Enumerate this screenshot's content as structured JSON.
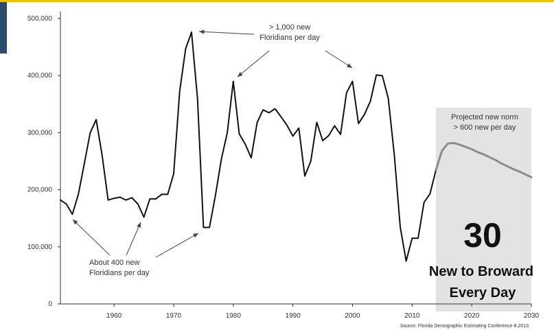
{
  "chart_data": {
    "type": "line",
    "title": "",
    "xlabel": "",
    "ylabel": "",
    "xlim": [
      1951,
      2030
    ],
    "ylim": [
      0,
      500000
    ],
    "xticks": [
      1960,
      1970,
      1980,
      1990,
      2000,
      2010,
      2020,
      2030
    ],
    "yticks": [
      0,
      100000,
      200000,
      300000,
      400000,
      500000
    ],
    "ytick_labels": [
      "0",
      "100,000",
      "200,000",
      "300,000",
      "400,000",
      "500,000"
    ],
    "grid": false,
    "series": [
      {
        "name": "",
        "color": "#111111",
        "x": [
          1951,
          1952,
          1953,
          1954,
          1955,
          1956,
          1957,
          1958,
          1959,
          1960,
          1961,
          1962,
          1963,
          1964,
          1965,
          1966,
          1967,
          1968,
          1969,
          1970,
          1971,
          1972,
          1973,
          1974,
          1975,
          1976,
          1977,
          1978,
          1979,
          1980,
          1981,
          1982,
          1983,
          1984,
          1985,
          1986,
          1987,
          1988,
          1989,
          1990,
          1991,
          1992,
          1993,
          1994,
          1995,
          1996,
          1997,
          1998,
          1999,
          2000,
          2001,
          2002,
          2003,
          2004,
          2005,
          2006,
          2007,
          2008,
          2009,
          2010,
          2011,
          2012,
          2013,
          2014
        ],
        "values": [
          182000,
          175000,
          157000,
          192000,
          245000,
          300000,
          323000,
          260000,
          182000,
          185000,
          187000,
          182000,
          186000,
          175000,
          152000,
          184000,
          184000,
          192000,
          192000,
          228000,
          372000,
          447000,
          476000,
          360000,
          134000,
          134000,
          190000,
          254000,
          300000,
          390000,
          298000,
          280000,
          256000,
          318000,
          340000,
          335000,
          342000,
          328000,
          313000,
          294000,
          308000,
          224000,
          250000,
          318000,
          286000,
          295000,
          312000,
          297000,
          370000,
          390000,
          316000,
          332000,
          355000,
          401000,
          400000,
          360000,
          262000,
          135000,
          75000,
          115000,
          115000,
          178000,
          193000,
          235000
        ]
      },
      {
        "name": "",
        "projected": true,
        "color": "#8c8c8c",
        "x": [
          2014,
          2015,
          2016,
          2017,
          2018,
          2019,
          2020,
          2021,
          2022,
          2023,
          2024,
          2025,
          2026,
          2027,
          2028,
          2029,
          2030
        ],
        "values": [
          235000,
          268000,
          281000,
          282000,
          279000,
          275000,
          271000,
          266000,
          262000,
          257000,
          252000,
          246000,
          241000,
          236000,
          232000,
          227000,
          222000
        ]
      }
    ],
    "shaded_region": {
      "from": 2014,
      "to": 2030,
      "label_lines": [
        "Projected new norm",
        "> 600 new per day"
      ],
      "color": "#e3e3e3"
    },
    "annotations": [
      {
        "lines": [
          "> 1,000 new",
          "Floridians per day"
        ]
      },
      {
        "lines": [
          "About 400 new",
          "Floridians per day"
        ]
      }
    ],
    "callout": {
      "number": "30",
      "line1": "New to Broward",
      "line2": "Every Day"
    },
    "source": "Source: Florida Demographic Estimating Conference 8.2013"
  }
}
